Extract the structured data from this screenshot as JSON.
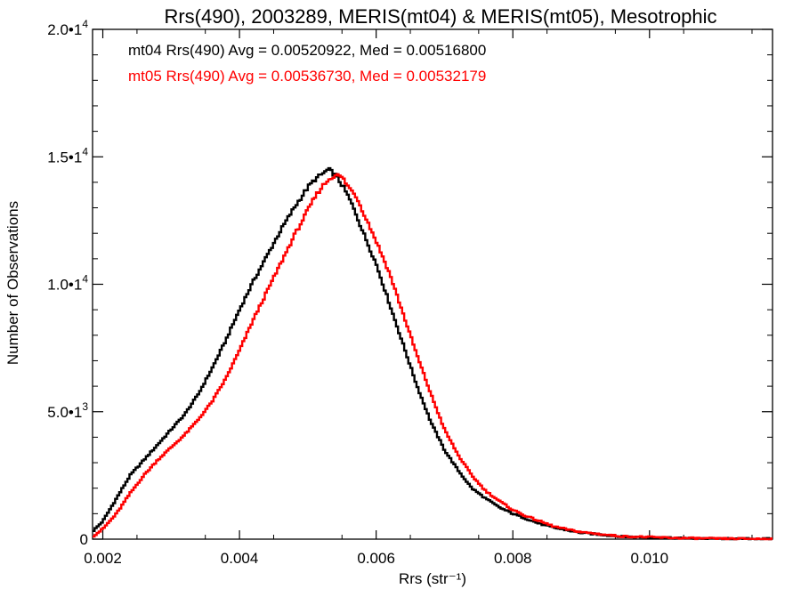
{
  "chart_data": {
    "type": "line",
    "step": true,
    "title": "Rrs(490), 2003289, MERIS(mt04) & MERIS(mt05), Mesotrophic",
    "xlabel": "Rrs (str⁻¹)",
    "ylabel": "Number of Observations",
    "xlim": [
      0.00185,
      0.0118
    ],
    "ylim": [
      0,
      20000
    ],
    "x_ticks": [
      {
        "value": 0.002,
        "label": "0.002"
      },
      {
        "value": 0.004,
        "label": "0.004"
      },
      {
        "value": 0.006,
        "label": "0.006"
      },
      {
        "value": 0.008,
        "label": "0.008"
      },
      {
        "value": 0.01,
        "label": "0.010"
      }
    ],
    "y_ticks": [
      {
        "value": 0,
        "mantissa": "0",
        "exponent": ""
      },
      {
        "value": 5000,
        "mantissa": "5.0•1",
        "exponent": "3"
      },
      {
        "value": 10000,
        "mantissa": "1.0•1",
        "exponent": "4"
      },
      {
        "value": 15000,
        "mantissa": "1.5•1",
        "exponent": "4"
      },
      {
        "value": 20000,
        "mantissa": "2.0•1",
        "exponent": "4"
      }
    ],
    "grid": false,
    "legend_position": "top-left",
    "series": [
      {
        "name": "mt04",
        "stats_label": "mt04 Rrs(490) Avg = 0.00520922, Med = 0.00516800",
        "color": "#000000",
        "points": [
          [
            0.00185,
            300
          ],
          [
            0.002,
            700
          ],
          [
            0.0022,
            1600
          ],
          [
            0.0024,
            2500
          ],
          [
            0.0026,
            3100
          ],
          [
            0.0028,
            3700
          ],
          [
            0.003,
            4300
          ],
          [
            0.0032,
            4900
          ],
          [
            0.0034,
            5700
          ],
          [
            0.0036,
            6700
          ],
          [
            0.0038,
            7800
          ],
          [
            0.004,
            9000
          ],
          [
            0.0042,
            10100
          ],
          [
            0.0044,
            11100
          ],
          [
            0.0046,
            12100
          ],
          [
            0.0048,
            13000
          ],
          [
            0.005,
            13800
          ],
          [
            0.0051,
            14100
          ],
          [
            0.0052,
            14300
          ],
          [
            0.0053,
            14500
          ],
          [
            0.0054,
            14300
          ],
          [
            0.0055,
            13900
          ],
          [
            0.0056,
            13400
          ],
          [
            0.0057,
            12800
          ],
          [
            0.0058,
            12100
          ],
          [
            0.006,
            10800
          ],
          [
            0.0062,
            9200
          ],
          [
            0.0064,
            7600
          ],
          [
            0.0066,
            6000
          ],
          [
            0.0068,
            4600
          ],
          [
            0.007,
            3500
          ],
          [
            0.0072,
            2700
          ],
          [
            0.0074,
            2000
          ],
          [
            0.0076,
            1600
          ],
          [
            0.0078,
            1250
          ],
          [
            0.008,
            1000
          ],
          [
            0.0082,
            800
          ],
          [
            0.0084,
            600
          ],
          [
            0.0086,
            450
          ],
          [
            0.0088,
            350
          ],
          [
            0.009,
            250
          ],
          [
            0.0092,
            200
          ],
          [
            0.0094,
            150
          ],
          [
            0.0096,
            100
          ],
          [
            0.01,
            70
          ],
          [
            0.0104,
            40
          ],
          [
            0.011,
            20
          ],
          [
            0.0118,
            10
          ]
        ]
      },
      {
        "name": "mt05",
        "stats_label": "mt05 Rrs(490) Avg = 0.00536730, Med = 0.00532179",
        "color": "#ff0000",
        "points": [
          [
            0.00185,
            100
          ],
          [
            0.002,
            400
          ],
          [
            0.0022,
            1000
          ],
          [
            0.0024,
            1800
          ],
          [
            0.0026,
            2500
          ],
          [
            0.0028,
            3100
          ],
          [
            0.003,
            3600
          ],
          [
            0.0032,
            4100
          ],
          [
            0.0034,
            4700
          ],
          [
            0.0036,
            5400
          ],
          [
            0.0038,
            6300
          ],
          [
            0.004,
            7400
          ],
          [
            0.0042,
            8600
          ],
          [
            0.0044,
            9700
          ],
          [
            0.0046,
            10800
          ],
          [
            0.0048,
            11900
          ],
          [
            0.005,
            12900
          ],
          [
            0.0051,
            13400
          ],
          [
            0.0052,
            13800
          ],
          [
            0.0053,
            14100
          ],
          [
            0.0054,
            14300
          ],
          [
            0.0055,
            14200
          ],
          [
            0.0056,
            13800
          ],
          [
            0.0057,
            13500
          ],
          [
            0.0058,
            12900
          ],
          [
            0.006,
            11700
          ],
          [
            0.0062,
            10400
          ],
          [
            0.0064,
            8800
          ],
          [
            0.0066,
            7200
          ],
          [
            0.0068,
            5700
          ],
          [
            0.007,
            4300
          ],
          [
            0.0072,
            3300
          ],
          [
            0.0074,
            2500
          ],
          [
            0.0076,
            1900
          ],
          [
            0.0078,
            1500
          ],
          [
            0.008,
            1150
          ],
          [
            0.0082,
            900
          ],
          [
            0.0084,
            700
          ],
          [
            0.0086,
            500
          ],
          [
            0.0088,
            380
          ],
          [
            0.009,
            280
          ],
          [
            0.0092,
            220
          ],
          [
            0.0094,
            160
          ],
          [
            0.0096,
            110
          ],
          [
            0.01,
            80
          ],
          [
            0.0104,
            45
          ],
          [
            0.011,
            20
          ],
          [
            0.0118,
            10
          ]
        ]
      }
    ]
  }
}
